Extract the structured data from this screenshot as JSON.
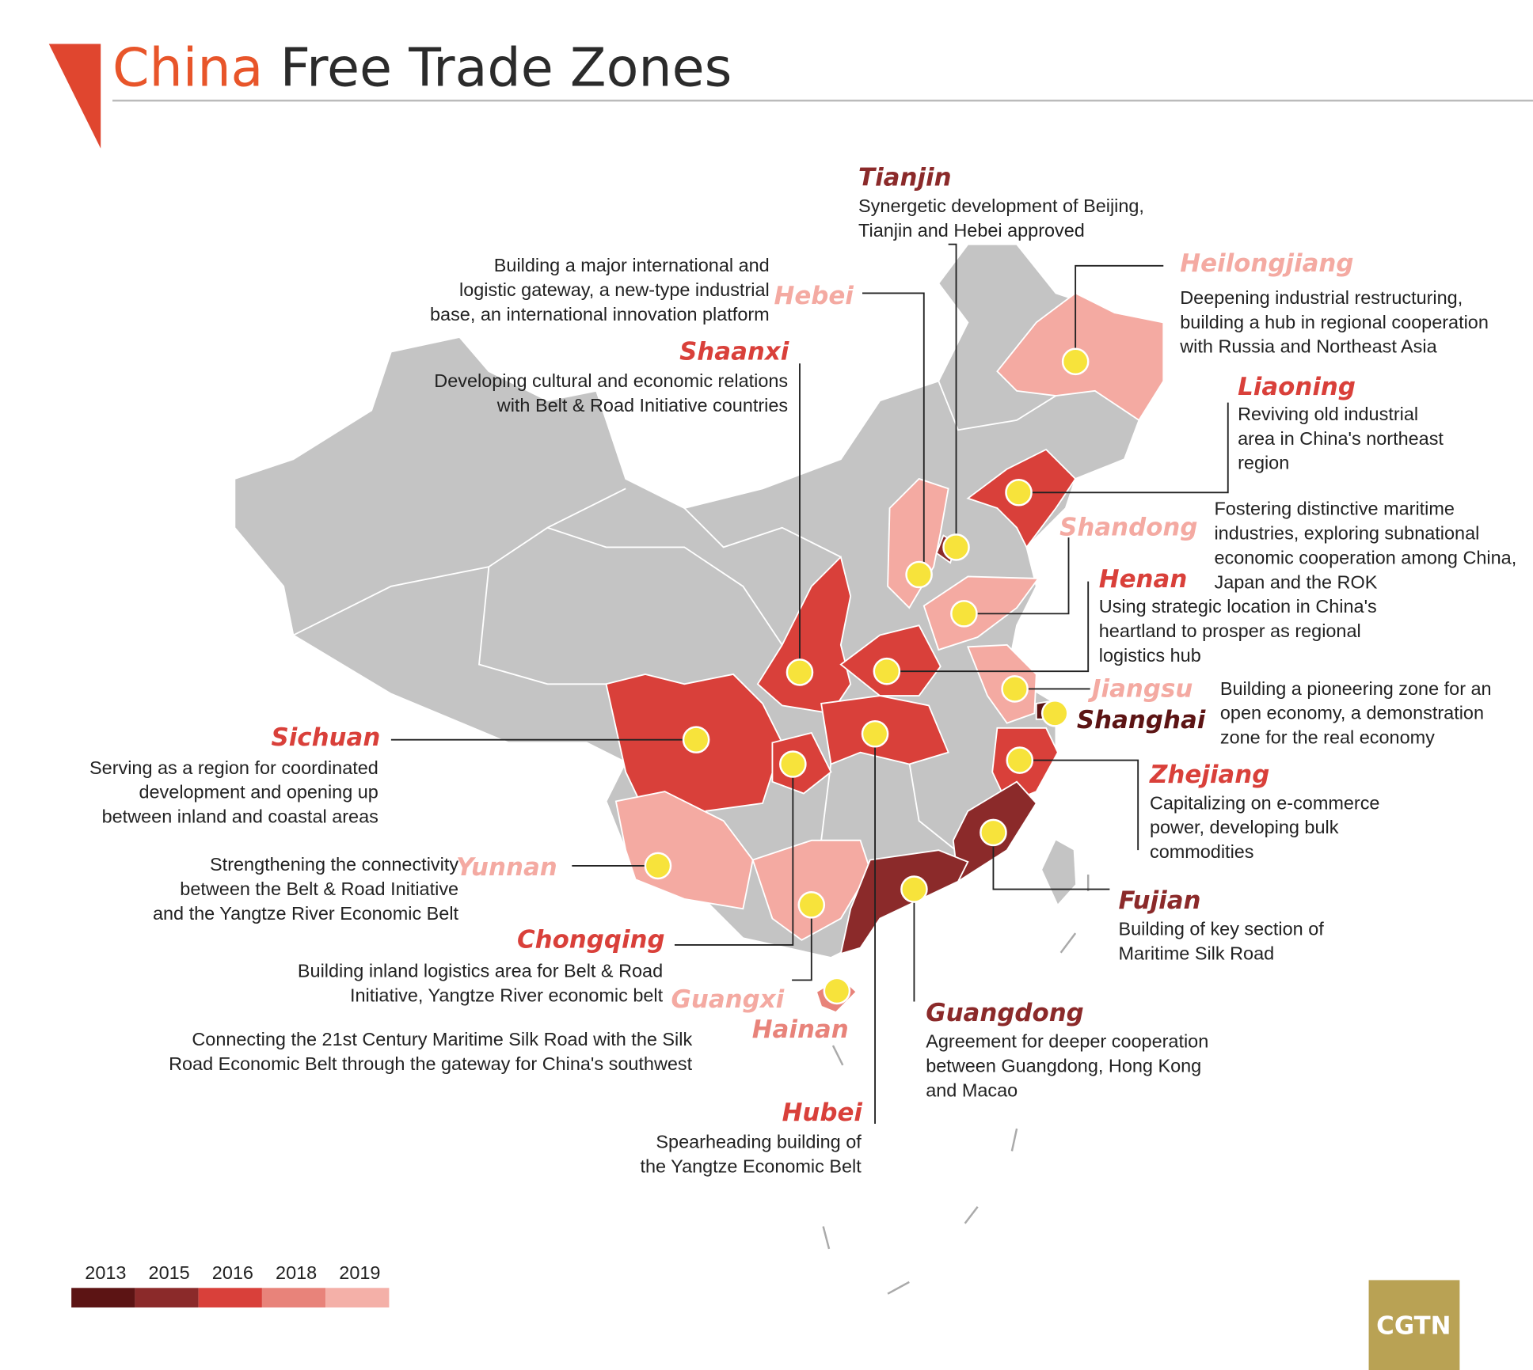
{
  "header": {
    "title_highlight": "China",
    "title_rest": "Free Trade Zones"
  },
  "zones": [
    {
      "name": "Tianjin",
      "color": "#8b2a2a",
      "description": [
        "Synergetic development of Beijing,",
        "Tianjin and Hebei approved"
      ]
    },
    {
      "name": "Hebei",
      "color": "#f4aaa2",
      "description": [
        "Building a major international and",
        "logistic gateway, a new-type industrial",
        "base, an international innovation platform"
      ]
    },
    {
      "name": "Heilongjiang",
      "color": "#f4aaa2",
      "description": [
        "Deepening industrial restructuring,",
        "building a hub in regional cooperation",
        "with Russia and Northeast Asia"
      ]
    },
    {
      "name": "Liaoning",
      "color": "#d9403a",
      "description": [
        "Reviving old industrial",
        "area in China's northeast",
        "region"
      ]
    },
    {
      "name": "Shaanxi",
      "color": "#d9403a",
      "description": [
        "Developing cultural and economic relations",
        "with Belt & Road Initiative countries"
      ]
    },
    {
      "name": "Shandong",
      "color": "#f4aaa2",
      "description": [
        "Fostering distinctive maritime",
        "industries, exploring subnational",
        "economic cooperation among China,",
        "Japan and the ROK"
      ]
    },
    {
      "name": "Henan",
      "color": "#d9403a",
      "description": [
        "Using strategic location in China's",
        "heartland to prosper as regional",
        "logistics hub"
      ]
    },
    {
      "name": "Jiangsu",
      "color": "#f4aaa2",
      "description": [
        "Building a pioneering zone for an",
        "open economy, a demonstration",
        "zone for the real economy"
      ]
    },
    {
      "name": "Shanghai",
      "color": "#5c1414",
      "description": []
    },
    {
      "name": "Sichuan",
      "color": "#d9403a",
      "description": [
        "Serving as a region for coordinated",
        "development and opening up",
        "between inland and coastal areas"
      ]
    },
    {
      "name": "Zhejiang",
      "color": "#d9403a",
      "description": [
        "Capitalizing on e-commerce",
        "power, developing bulk",
        "commodities"
      ]
    },
    {
      "name": "Fujian",
      "color": "#8b2a2a",
      "description": [
        "Building of key section of",
        "Maritime Silk Road"
      ]
    },
    {
      "name": "Yunnan",
      "color": "#f4aaa2",
      "description": [
        "Strengthening the connectivity",
        "between the Belt & Road Initiative",
        "and the Yangtze River Economic Belt"
      ]
    },
    {
      "name": "Chongqing",
      "color": "#d9403a",
      "description": [
        "Building inland logistics area for Belt & Road",
        "Initiative, Yangtze River economic belt"
      ]
    },
    {
      "name": "Guangxi",
      "color": "#f4aaa2",
      "description": [
        "Connecting the 21st Century Maritime Silk Road with the Silk",
        "Road Economic Belt through the gateway for China's southwest"
      ]
    },
    {
      "name": "Hainan",
      "color": "#e8837a",
      "description": []
    },
    {
      "name": "Guangdong",
      "color": "#8b2a2a",
      "description": [
        "Agreement for deeper cooperation",
        "between Guangdong, Hong Kong",
        "and Macao"
      ]
    },
    {
      "name": "Hubei",
      "color": "#d9403a",
      "description": [
        "Spearheading building of",
        "the Yangtze Economic Belt"
      ]
    }
  ],
  "legend": [
    {
      "label": "2013",
      "color": "#5c1414"
    },
    {
      "label": "2015",
      "color": "#8b2a2a"
    },
    {
      "label": "2016",
      "color": "#d9403a"
    },
    {
      "label": "2018",
      "color": "#e8837a"
    },
    {
      "label": "2019",
      "color": "#f4b0a8"
    }
  ],
  "logo": "CGTN"
}
